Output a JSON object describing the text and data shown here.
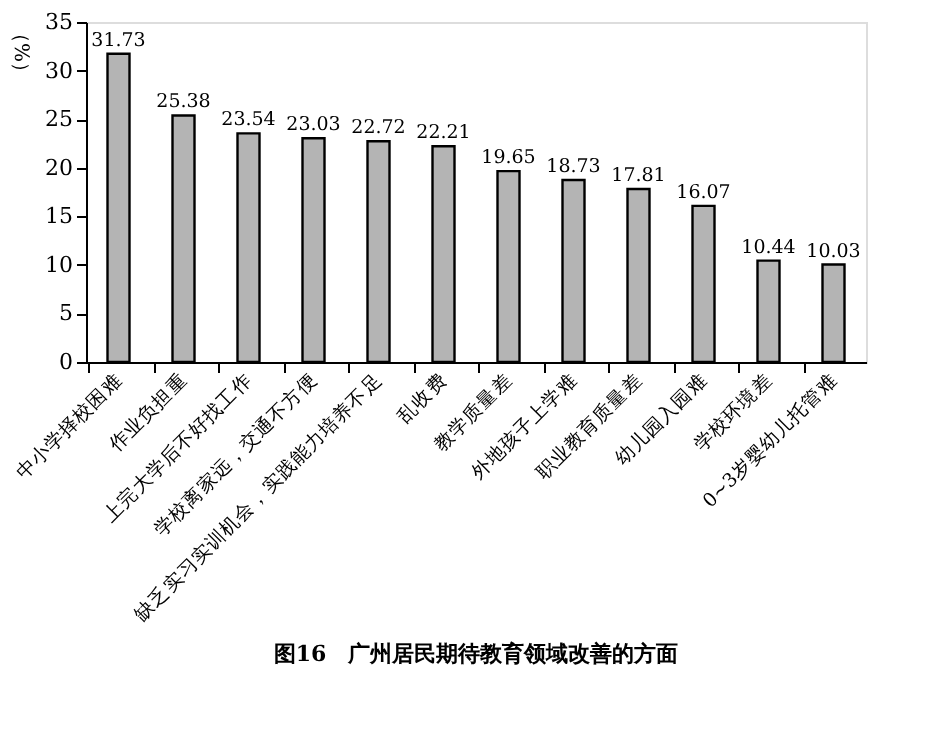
{
  "chart_data": {
    "type": "bar",
    "title": "图16　广州居民期待教育领域改善的方面",
    "ylabel": "（%）",
    "categories": [
      "中小学择校困难",
      "作业负担重",
      "上完大学后不好找工作",
      "学校离家远，交通不方便",
      "缺乏实习实训机会，实践能力培养不足",
      "乱收费",
      "教学质量差",
      "外地孩子上学难",
      "职业教育质量差",
      "幼儿园入园难",
      "学校环境差",
      "0~3岁婴幼儿托管难"
    ],
    "values": [
      31.73,
      25.38,
      23.54,
      23.03,
      22.72,
      22.21,
      19.65,
      18.73,
      17.81,
      16.07,
      10.44,
      10.03
    ],
    "color": "#b4b4b4",
    "ylim": [
      0,
      35
    ],
    "yticks": [
      0,
      5,
      10,
      15,
      20,
      25,
      30,
      35
    ],
    "grid": false,
    "data_labels": true
  }
}
